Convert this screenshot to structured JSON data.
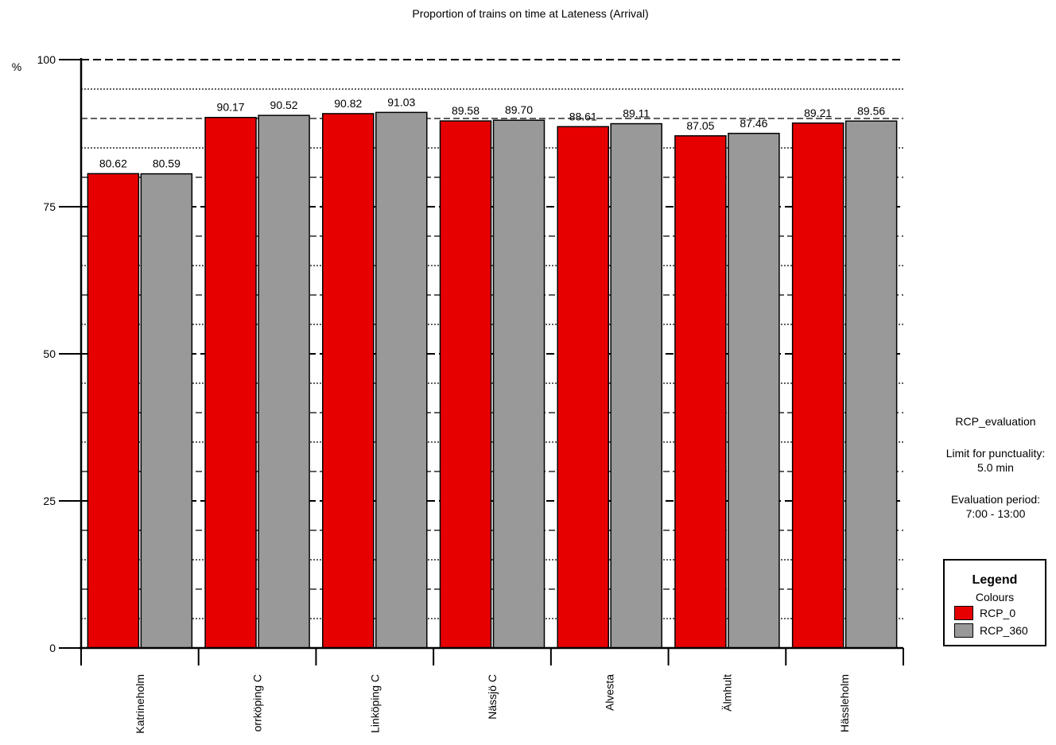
{
  "chart_data": {
    "type": "bar",
    "title": "Proportion of trains on time at Lateness (Arrival)",
    "ylabel": "%",
    "xlabel": "",
    "ylim": [
      0,
      100
    ],
    "yticks": [
      "0",
      "25",
      "50",
      "75",
      "100"
    ],
    "categories": [
      "Katrineholm",
      "orrköping C",
      "Linköping C",
      "Nässjö C",
      "Alvesta",
      "Älmhult",
      "Hässleholm"
    ],
    "series": [
      {
        "name": "RCP_0",
        "color": "#e60000",
        "values": [
          80.62,
          90.17,
          90.82,
          89.58,
          88.61,
          87.05,
          89.21
        ],
        "labels": [
          "80.62",
          "90.17",
          "90.82",
          "89.58",
          "88.61",
          "87.05",
          "89.21"
        ]
      },
      {
        "name": "RCP_360",
        "color": "#999999",
        "values": [
          80.59,
          90.52,
          91.03,
          89.7,
          89.11,
          87.46,
          89.56
        ],
        "labels": [
          "80.59",
          "90.52",
          "91.03",
          "89.70",
          "89.11",
          "87.46",
          "89.56"
        ]
      }
    ],
    "grid": true,
    "legend_position": "right"
  },
  "side_info": {
    "evaluation_name": "RCP_evaluation",
    "punctuality_label": "Limit for punctuality:",
    "punctuality_value": "5.0 min",
    "period_label": "Evaluation period:",
    "period_value": "7:00 - 13:00"
  },
  "legend": {
    "title": "Legend",
    "subtitle": "Colours"
  }
}
